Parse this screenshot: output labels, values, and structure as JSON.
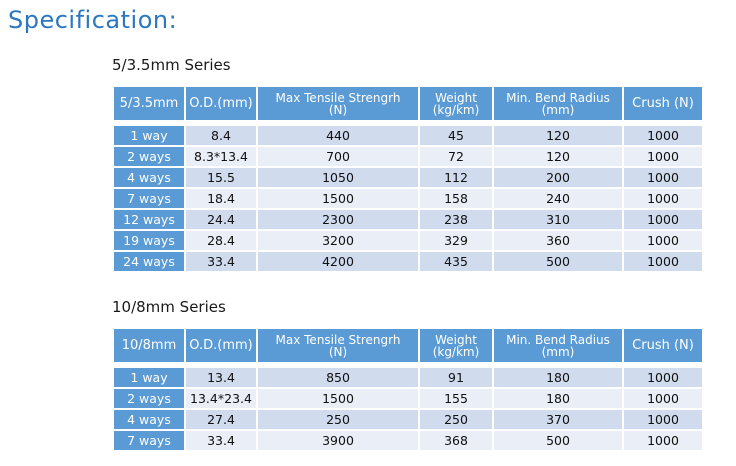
{
  "page": {
    "title": "Specification:"
  },
  "tables": [
    {
      "series_title": "5/3.5mm Series",
      "headers": {
        "col1": "5/3.5mm",
        "col2": "O.D.(mm)",
        "col3_line1": "Max Tensile Strengrh",
        "col3_line2": "(N)",
        "col4_line1": "Weight",
        "col4_line2": "(kg/km)",
        "col5_line1": "Min. Bend Radius",
        "col5_line2": "(mm)",
        "col6": "Crush (N)"
      },
      "rows": [
        [
          "1 way",
          "8.4",
          "440",
          "45",
          "120",
          "1000"
        ],
        [
          "2 ways",
          "8.3*13.4",
          "700",
          "72",
          "120",
          "1000"
        ],
        [
          "4 ways",
          "15.5",
          "1050",
          "112",
          "200",
          "1000"
        ],
        [
          "7 ways",
          "18.4",
          "1500",
          "158",
          "240",
          "1000"
        ],
        [
          "12 ways",
          "24.4",
          "2300",
          "238",
          "310",
          "1000"
        ],
        [
          "19 ways",
          "28.4",
          "3200",
          "329",
          "360",
          "1000"
        ],
        [
          "24 ways",
          "33.4",
          "4200",
          "435",
          "500",
          "1000"
        ]
      ]
    },
    {
      "series_title": "10/8mm Series",
      "headers": {
        "col1": "10/8mm",
        "col2": "O.D.(mm)",
        "col3_line1": "Max Tensile Strengrh",
        "col3_line2": "(N)",
        "col4_line1": "Weight",
        "col4_line2": "(kg/km)",
        "col5_line1": "Min. Bend Radius",
        "col5_line2": "(mm)",
        "col6": "Crush (N)"
      },
      "rows": [
        [
          "1 way",
          "13.4",
          "850",
          "91",
          "180",
          "1000"
        ],
        [
          "2 ways",
          "13.4*23.4",
          "1500",
          "155",
          "180",
          "1000"
        ],
        [
          "4 ways",
          "27.4",
          "250",
          "250",
          "370",
          "1000"
        ],
        [
          "7 ways",
          "33.4",
          "3900",
          "368",
          "500",
          "1000"
        ]
      ]
    }
  ]
}
